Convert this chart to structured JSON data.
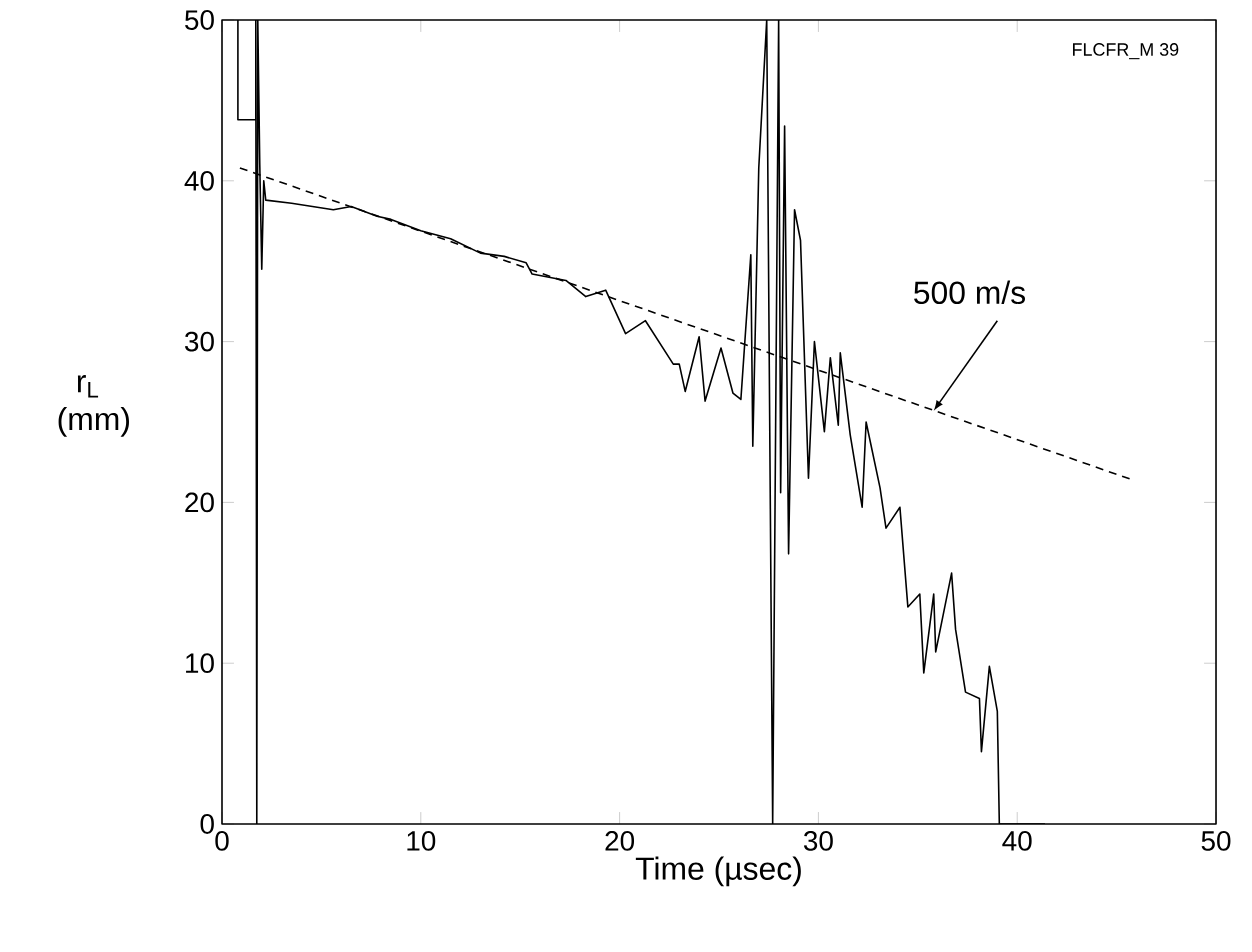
{
  "chart_data": {
    "type": "line",
    "xlabel": "Time (µsec)",
    "ylabel": "r$_{L}$ (mm)",
    "xlim": [
      0,
      50
    ],
    "ylim": [
      0,
      50
    ],
    "xticks": [
      0,
      10,
      20,
      30,
      40,
      50
    ],
    "yticks": [
      0,
      10,
      20,
      30,
      40,
      50
    ],
    "grid": false,
    "marker": "none",
    "series": [
      {
        "color": "#000000",
        "line_style": "solid",
        "x": [
          0.8,
          0.8,
          1.7,
          1.7,
          1.75,
          1.8,
          1.9,
          2.0,
          2.1,
          2.2,
          3.5,
          5.6,
          6.5,
          7.8,
          8.5,
          10.0,
          11.5,
          13.0,
          14.2,
          15.3,
          15.6,
          17.3,
          18.3,
          19.3,
          20.3,
          21.3,
          22.7,
          23.0,
          23.3,
          24.0,
          24.3,
          25.1,
          25.7,
          26.1,
          26.6,
          26.7,
          27.0,
          27.4,
          27.7,
          28.0,
          28.1,
          28.3,
          28.5,
          28.8,
          29.1,
          29.5,
          29.8,
          30.3,
          30.6,
          31.0,
          31.1,
          31.6,
          32.2,
          32.4,
          33.1,
          33.4,
          34.1,
          34.5,
          35.1,
          35.3,
          35.8,
          35.9,
          36.7,
          36.9,
          37.4,
          38.1,
          38.2,
          38.6,
          39.0,
          39.1,
          41.4
        ],
        "values": [
          50,
          43.8,
          43.8,
          50,
          0,
          50,
          41,
          34.5,
          40,
          38.8,
          38.6,
          38.2,
          38.4,
          37.8,
          37.6,
          36.9,
          36.4,
          35.5,
          35.3,
          34.9,
          34.2,
          33.8,
          32.8,
          33.2,
          30.5,
          31.3,
          28.6,
          28.6,
          26.9,
          30.3,
          26.3,
          29.6,
          26.8,
          26.4,
          35.4,
          23.5,
          40.8,
          50,
          0,
          50,
          20.6,
          43.4,
          16.8,
          38.2,
          36.3,
          21.5,
          30,
          24.4,
          29.0,
          24.8,
          29.3,
          24.2,
          19.7,
          25,
          20.9,
          18.4,
          19.7,
          13.5,
          14.3,
          9.4,
          14.3,
          10.7,
          15.6,
          12.1,
          8.2,
          7.8,
          4.5,
          9.8,
          7,
          0,
          0
        ]
      },
      {
        "color": "#000000",
        "line_style": "dashed",
        "x": [
          0.9,
          45.8
        ],
        "values": [
          40.8,
          21.4
        ]
      }
    ],
    "annotations": [
      {
        "text": "500 m/s",
        "x": 35.8,
        "y": 25.7
      },
      "FLCFR_M 39"
    ]
  }
}
